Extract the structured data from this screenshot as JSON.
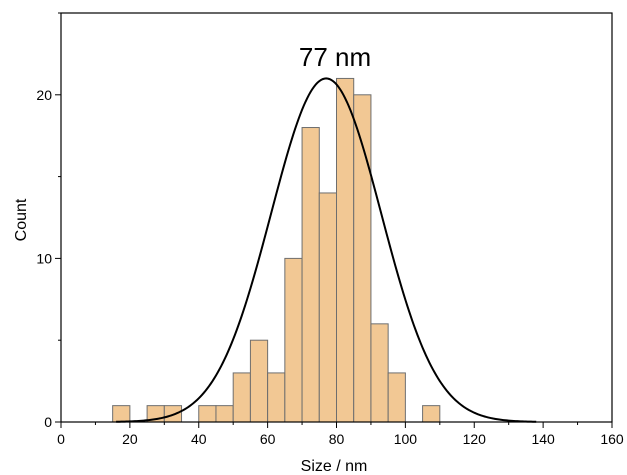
{
  "chart_data": {
    "type": "bar",
    "subtype": "histogram with normal fit curve",
    "xlabel": "Size / nm",
    "ylabel": "Count",
    "xlim": [
      0,
      160
    ],
    "ylim": [
      0,
      25
    ],
    "x_ticks": [
      0,
      20,
      40,
      60,
      80,
      100,
      120,
      140,
      160
    ],
    "y_ticks": [
      0,
      10,
      20
    ],
    "grid": false,
    "annotation": "77 nm",
    "bin_width": 5,
    "bars": [
      {
        "start": 15,
        "end": 20,
        "count": 1
      },
      {
        "start": 25,
        "end": 30,
        "count": 1
      },
      {
        "start": 30,
        "end": 35,
        "count": 1
      },
      {
        "start": 40,
        "end": 45,
        "count": 1
      },
      {
        "start": 45,
        "end": 50,
        "count": 1
      },
      {
        "start": 50,
        "end": 55,
        "count": 3
      },
      {
        "start": 55,
        "end": 60,
        "count": 5
      },
      {
        "start": 60,
        "end": 65,
        "count": 3
      },
      {
        "start": 65,
        "end": 70,
        "count": 10
      },
      {
        "start": 70,
        "end": 75,
        "count": 18
      },
      {
        "start": 75,
        "end": 80,
        "count": 14
      },
      {
        "start": 80,
        "end": 85,
        "count": 21
      },
      {
        "start": 85,
        "end": 90,
        "count": 20
      },
      {
        "start": 90,
        "end": 95,
        "count": 6
      },
      {
        "start": 95,
        "end": 100,
        "count": 3
      },
      {
        "start": 105,
        "end": 110,
        "count": 1
      }
    ],
    "fit_curve": {
      "type": "gaussian",
      "center": 77,
      "amplitude": 21,
      "sigma": 16,
      "x_range": [
        16,
        138
      ]
    },
    "colors": {
      "bar_fill": "#f2c894",
      "bar_stroke": "#6e6e6e",
      "curve": "#000000",
      "axes": "#000000"
    }
  }
}
